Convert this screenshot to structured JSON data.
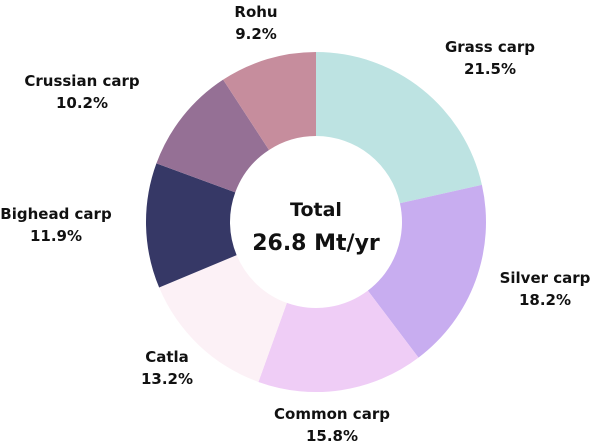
{
  "chart_data": {
    "type": "pie",
    "donut": true,
    "center": {
      "title": "Total",
      "value": "26.8 Mt/yr"
    },
    "slices": [
      {
        "name": "Grass carp",
        "value": 21.5,
        "label": "21.5%",
        "color": "#bde3e2"
      },
      {
        "name": "Silver carp",
        "value": 18.2,
        "label": "18.2%",
        "color": "#c8adf0"
      },
      {
        "name": "Common carp",
        "value": 15.8,
        "label": "15.8%",
        "color": "#efcdf6"
      },
      {
        "name": "Catla",
        "value": 13.2,
        "label": "13.2%",
        "color": "#fcf1f6"
      },
      {
        "name": "Bighead carp",
        "value": 11.9,
        "label": "11.9%",
        "color": "#363866"
      },
      {
        "name": "Crussian carp",
        "value": 10.2,
        "label": "10.2%",
        "color": "#957095"
      },
      {
        "name": "Rohu",
        "value": 9.2,
        "label": "9.2%",
        "color": "#c68d9d"
      }
    ]
  }
}
